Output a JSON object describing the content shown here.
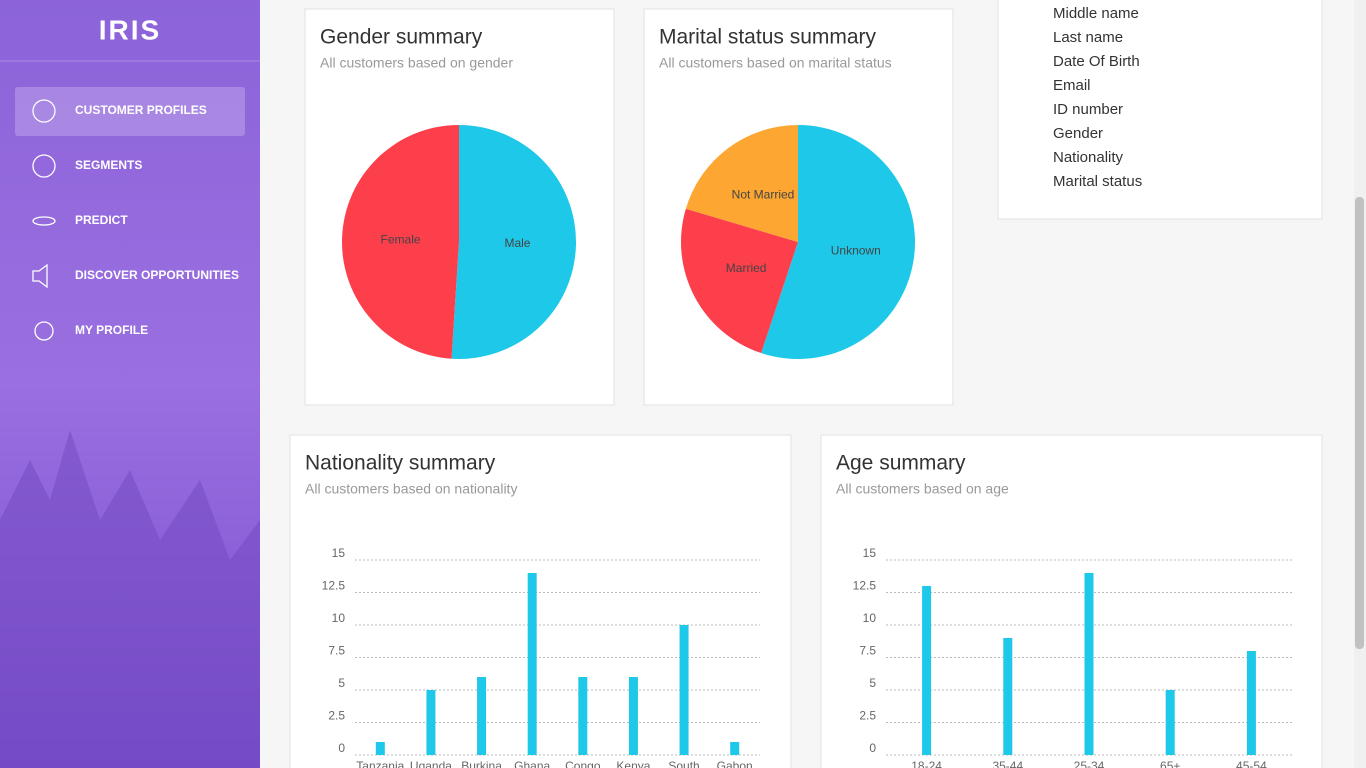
{
  "sidebar": {
    "logo": "IRIS",
    "menu": [
      "CUSTOMER PROFILES",
      "SEGMENTS",
      "PREDICT",
      "DISCOVER OPPORTUNITIES",
      "MY PROFILE"
    ]
  },
  "fields": [
    "Middle name",
    "Last name",
    "Date Of Birth",
    "Email",
    "ID number",
    "Gender",
    "Nationality",
    "Marital status"
  ],
  "chart_data": [
    {
      "type": "pie",
      "title": "Gender summary",
      "subtitle": "All customers based on gender",
      "categories": [
        "Male",
        "Female"
      ],
      "values": [
        25,
        24
      ],
      "colors": [
        "#1ec8e9",
        "#fd3f4c"
      ]
    },
    {
      "type": "pie",
      "title": "Marital status summary",
      "subtitle": "All customers based on marital status",
      "categories": [
        "Unknown",
        "Married",
        "Not Married"
      ],
      "values": [
        27,
        12,
        10
      ],
      "colors": [
        "#1ec8e9",
        "#fd3f4c",
        "#fda732"
      ]
    },
    {
      "type": "bar",
      "title": "Nationality summary",
      "subtitle": "All customers based on nationality",
      "categories": [
        "Tanzania",
        "Uganda",
        "Burkina",
        "Ghana",
        "Congo",
        "Kenya",
        "South",
        "Gabon"
      ],
      "values": [
        1,
        5,
        6,
        14,
        6,
        6,
        10,
        1
      ],
      "color": "#1ec8e9",
      "ylim": [
        0,
        15
      ],
      "yticks": [
        0,
        2.5,
        5,
        7.5,
        10,
        12.5,
        15
      ],
      "grid": true
    },
    {
      "type": "bar",
      "title": "Age summary",
      "subtitle": "All customers based on age",
      "categories": [
        "18-24",
        "35-44",
        "25-34",
        "65+",
        "45-54"
      ],
      "values": [
        13,
        9,
        14,
        5,
        8
      ],
      "color": "#1ec8e9",
      "ylim": [
        0,
        15
      ],
      "yticks": [
        0,
        2.5,
        5,
        7.5,
        10,
        12.5,
        15
      ],
      "grid": true
    }
  ]
}
